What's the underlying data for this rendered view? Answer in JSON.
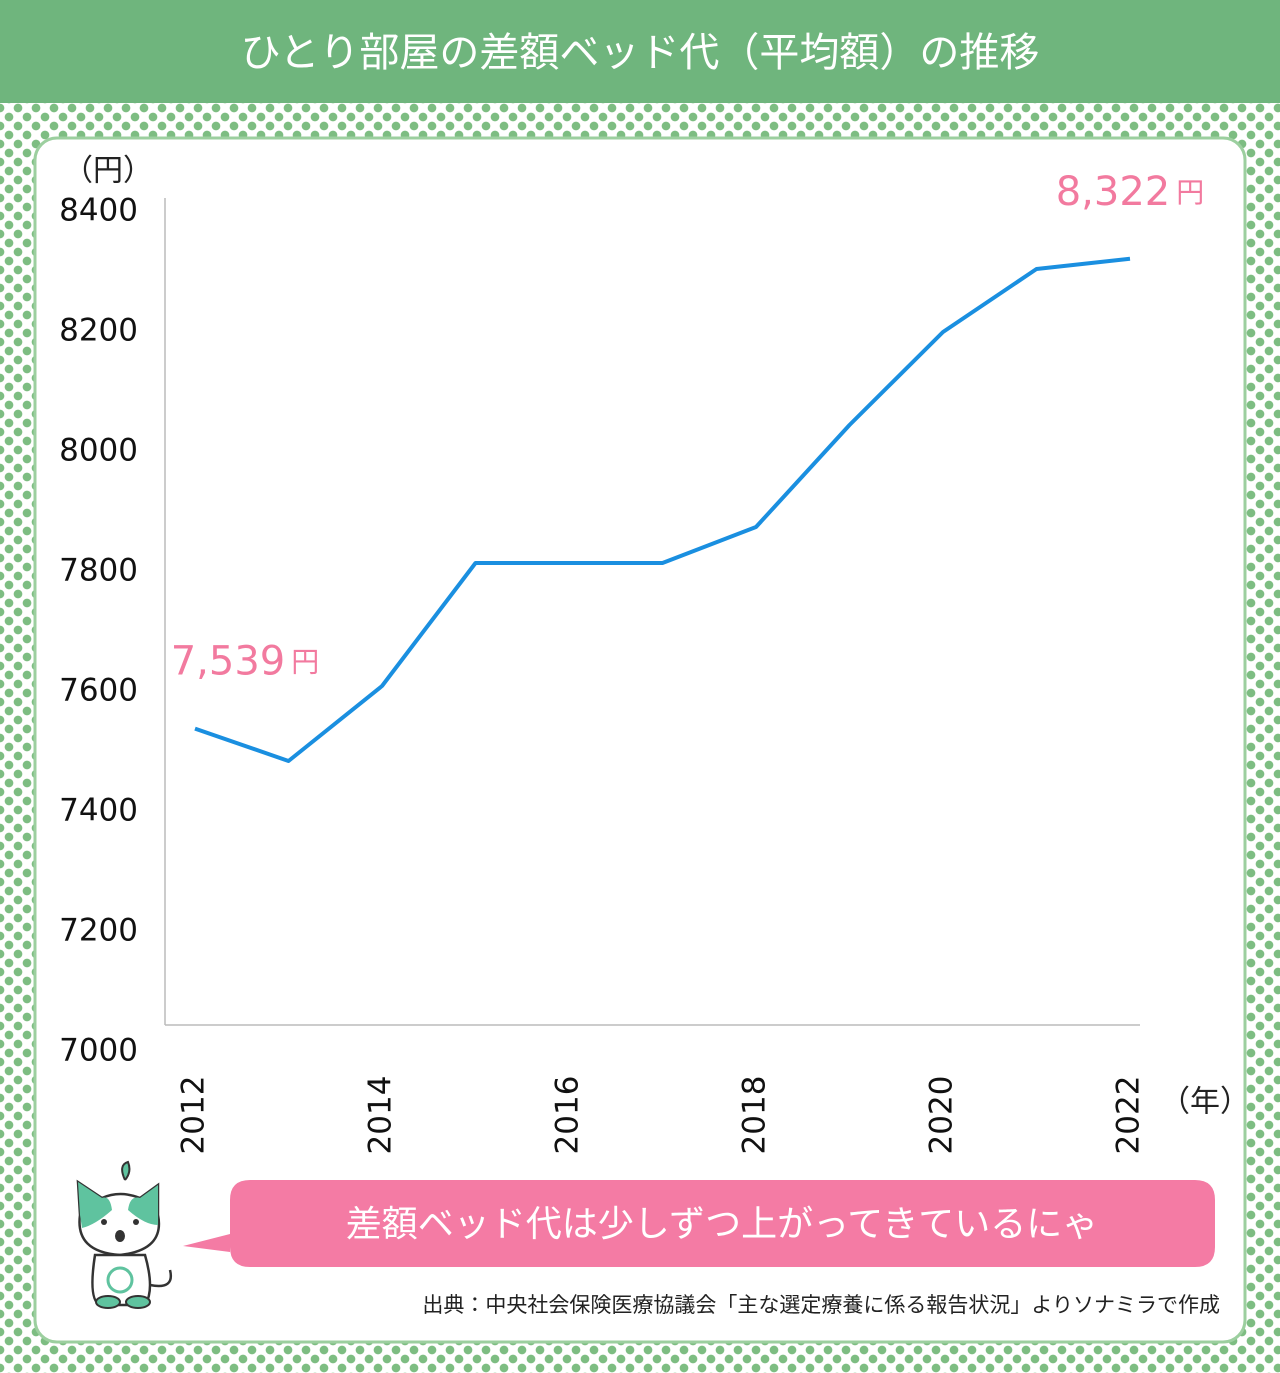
{
  "title": "ひとり部屋の差額ベッド代（平均額）の推移",
  "speech": "差額ベッド代は少しずつ上がってきているにゃ",
  "source": "出典：中央社会保険医療協議会「主な選定療養に係る報告状況」よりソナミラで作成",
  "chart_data": {
    "type": "line",
    "title": "ひとり部屋の差額ベッド代（平均額）の推移",
    "y_label": "（円）",
    "x_label": "（年）",
    "x": [
      2012,
      2013,
      2014,
      2015,
      2016,
      2017,
      2018,
      2019,
      2020,
      2021,
      2022
    ],
    "series": [
      {
        "name": "差額ベッド代",
        "color": "#1a8fe0",
        "values": [
          7539,
          7485,
          7610,
          7815,
          7815,
          7815,
          7875,
          8045,
          8200,
          8305,
          8322
        ],
        "value_labels": [
          "7,539",
          null,
          null,
          null,
          null,
          null,
          null,
          null,
          null,
          null,
          "8,322"
        ]
      }
    ],
    "label_unit": "円",
    "label_color": "#f27a9f",
    "xlim": [
      2012,
      2022
    ],
    "xticks": [
      2012,
      2014,
      2016,
      2018,
      2020,
      2022
    ],
    "ylim": [
      7000,
      8400
    ],
    "yticks": [
      7000,
      7200,
      7400,
      7600,
      7800,
      8000,
      8200,
      8400
    ],
    "grid": false
  }
}
